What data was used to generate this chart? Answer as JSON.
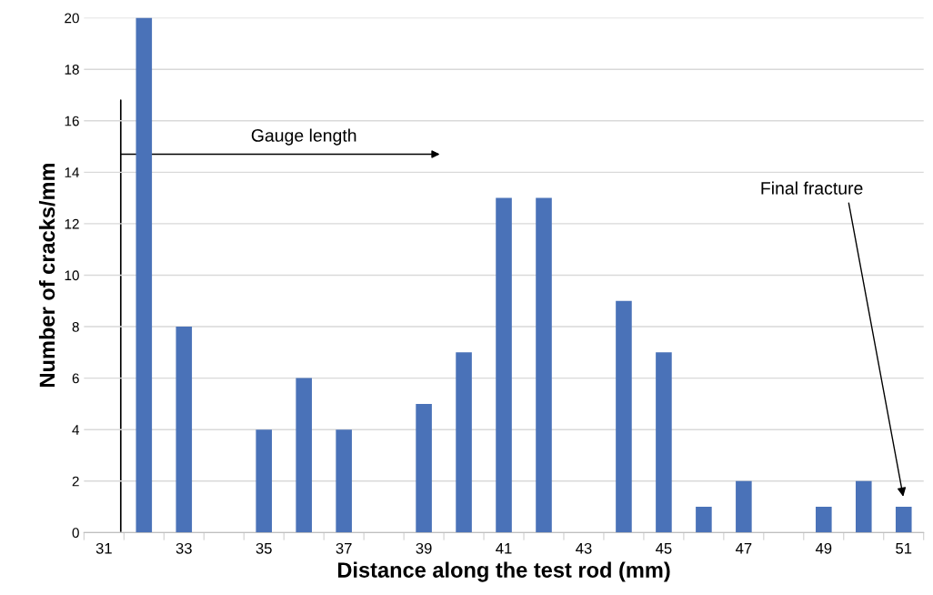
{
  "chart_data": {
    "type": "bar",
    "xlabel": "Distance along the test rod (mm)",
    "ylabel": "Number of cracks/mm",
    "categories": [
      "31",
      null,
      "33",
      null,
      "35",
      null,
      "37",
      null,
      "39",
      null,
      "41",
      null,
      "43",
      null,
      "45",
      null,
      "47",
      null,
      "49",
      null,
      "51"
    ],
    "values": [
      0,
      20,
      8,
      0,
      4,
      6,
      4,
      0,
      5,
      7,
      13,
      13,
      0,
      9,
      7,
      1,
      2,
      0,
      1,
      2,
      1
    ],
    "color": "#4a72b8",
    "ylim": [
      0,
      20
    ],
    "yticks": [
      0,
      2,
      4,
      6,
      8,
      10,
      12,
      14,
      16,
      18,
      20
    ],
    "grid": "y",
    "annotations": [
      "Gauge length",
      "Final fracture"
    ]
  }
}
